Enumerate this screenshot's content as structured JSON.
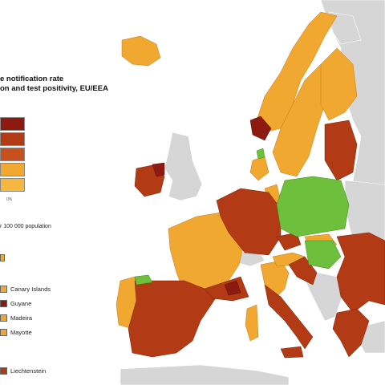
{
  "title": {
    "line1": "e notification rate",
    "line2": "on and test positivity, EU/EEA"
  },
  "legend": {
    "scale_colors": [
      "#8c1a10",
      "#b23a14",
      "#c8501c",
      "#f0a830",
      "#f5b740"
    ],
    "scale_note": "0%",
    "population_note": "r 100 000 population",
    "first_color": "#f0a830",
    "outermost": [
      {
        "label": "Canary Islands",
        "color": "#f0a830"
      },
      {
        "label": "Guyane",
        "color": "#8c1a10"
      },
      {
        "label": "Madeira",
        "color": "#f0a830"
      },
      {
        "label": "Mayotte",
        "color": "#f0a830"
      }
    ],
    "liechtenstein": {
      "label": "Liechtenstein",
      "color": "#b23a14"
    }
  },
  "colors": {
    "dark_red": "#8c1a10",
    "red": "#b23a14",
    "orange": "#f0a830",
    "green": "#6dbf3c",
    "grey": "#d6d6d6",
    "sea": "#ffffff"
  }
}
